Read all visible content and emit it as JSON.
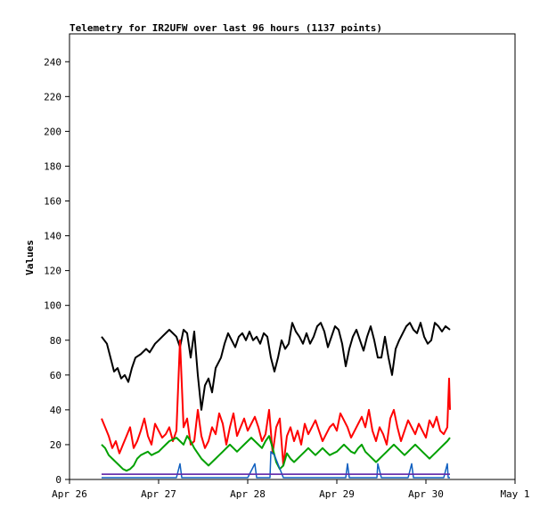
{
  "chart_data": {
    "type": "line",
    "title": "Telemetry for IR2UFW over last 96 hours (1137 points)",
    "xlabel": "",
    "ylabel": "Values",
    "ylim": [
      0,
      256
    ],
    "xlim": [
      "Apr 26",
      "May 1"
    ],
    "x_ticks": [
      "Apr 26",
      "Apr 27",
      "Apr 28",
      "Apr 29",
      "Apr 30",
      "May 1"
    ],
    "y_ticks": [
      0,
      20,
      40,
      60,
      80,
      100,
      120,
      140,
      160,
      180,
      200,
      220,
      240
    ],
    "grid": false,
    "legend": "none",
    "x_unit": "days since Apr 26 00:00",
    "series": [
      {
        "color": "#000000",
        "x": [
          0.36,
          0.42,
          0.46,
          0.5,
          0.54,
          0.58,
          0.62,
          0.66,
          0.7,
          0.74,
          0.8,
          0.86,
          0.9,
          0.96,
          1.0,
          1.04,
          1.08,
          1.12,
          1.16,
          1.2,
          1.24,
          1.28,
          1.32,
          1.36,
          1.4,
          1.44,
          1.48,
          1.52,
          1.56,
          1.6,
          1.64,
          1.7,
          1.74,
          1.78,
          1.82,
          1.86,
          1.9,
          1.94,
          1.98,
          2.02,
          2.06,
          2.1,
          2.14,
          2.18,
          2.22,
          2.26,
          2.3,
          2.34,
          2.38,
          2.42,
          2.46,
          2.5,
          2.54,
          2.58,
          2.62,
          2.66,
          2.7,
          2.74,
          2.78,
          2.82,
          2.86,
          2.9,
          2.94,
          2.98,
          3.02,
          3.06,
          3.1,
          3.14,
          3.18,
          3.22,
          3.26,
          3.3,
          3.34,
          3.38,
          3.42,
          3.46,
          3.5,
          3.54,
          3.58,
          3.62,
          3.66,
          3.7,
          3.74,
          3.78,
          3.82,
          3.86,
          3.9,
          3.94,
          3.98,
          4.02,
          4.06,
          4.1,
          4.14,
          4.18,
          4.22,
          4.27
        ],
        "values": [
          82,
          78,
          70,
          62,
          64,
          58,
          60,
          56,
          64,
          70,
          72,
          75,
          73,
          78,
          80,
          82,
          84,
          86,
          84,
          82,
          76,
          86,
          84,
          70,
          85,
          60,
          40,
          54,
          58,
          50,
          64,
          70,
          78,
          84,
          80,
          76,
          82,
          84,
          80,
          85,
          80,
          82,
          78,
          84,
          82,
          70,
          62,
          70,
          80,
          75,
          78,
          90,
          85,
          82,
          78,
          84,
          78,
          82,
          88,
          90,
          85,
          76,
          82,
          88,
          86,
          78,
          65,
          75,
          82,
          86,
          80,
          74,
          82,
          88,
          80,
          70,
          70,
          82,
          70,
          60,
          75,
          80,
          84,
          88,
          90,
          86,
          84,
          90,
          82,
          78,
          80,
          90,
          88,
          85,
          88,
          86
        ]
      },
      {
        "color": "#ff0000",
        "x": [
          0.36,
          0.4,
          0.44,
          0.48,
          0.52,
          0.56,
          0.6,
          0.64,
          0.68,
          0.72,
          0.76,
          0.8,
          0.84,
          0.88,
          0.92,
          0.96,
          1.0,
          1.04,
          1.08,
          1.12,
          1.16,
          1.2,
          1.24,
          1.28,
          1.32,
          1.36,
          1.4,
          1.44,
          1.48,
          1.52,
          1.56,
          1.6,
          1.64,
          1.68,
          1.72,
          1.76,
          1.8,
          1.84,
          1.88,
          1.92,
          1.96,
          2.0,
          2.04,
          2.08,
          2.12,
          2.16,
          2.2,
          2.24,
          2.28,
          2.32,
          2.36,
          2.4,
          2.44,
          2.48,
          2.52,
          2.56,
          2.6,
          2.64,
          2.68,
          2.72,
          2.76,
          2.8,
          2.84,
          2.88,
          2.92,
          2.96,
          3.0,
          3.04,
          3.08,
          3.12,
          3.16,
          3.2,
          3.24,
          3.28,
          3.32,
          3.36,
          3.4,
          3.44,
          3.48,
          3.52,
          3.56,
          3.6,
          3.64,
          3.68,
          3.72,
          3.76,
          3.8,
          3.84,
          3.88,
          3.92,
          3.96,
          4.0,
          4.04,
          4.08,
          4.12,
          4.16,
          4.2,
          4.24,
          4.26,
          4.27
        ],
        "values": [
          35,
          30,
          25,
          18,
          22,
          15,
          20,
          25,
          30,
          18,
          22,
          28,
          35,
          25,
          20,
          32,
          28,
          24,
          26,
          30,
          22,
          28,
          80,
          30,
          35,
          20,
          22,
          40,
          25,
          18,
          22,
          30,
          26,
          38,
          32,
          20,
          30,
          38,
          25,
          30,
          35,
          28,
          32,
          36,
          30,
          22,
          26,
          40,
          15,
          30,
          35,
          8,
          25,
          30,
          22,
          28,
          20,
          32,
          26,
          30,
          34,
          28,
          22,
          26,
          30,
          32,
          28,
          38,
          34,
          30,
          24,
          28,
          32,
          36,
          30,
          40,
          28,
          22,
          30,
          26,
          20,
          35,
          40,
          30,
          22,
          28,
          34,
          30,
          26,
          32,
          28,
          24,
          34,
          30,
          36,
          28,
          26,
          30,
          58,
          40
        ]
      },
      {
        "color": "#00a000",
        "x": [
          0.36,
          0.4,
          0.44,
          0.48,
          0.52,
          0.56,
          0.6,
          0.64,
          0.68,
          0.72,
          0.76,
          0.8,
          0.84,
          0.88,
          0.92,
          0.96,
          1.0,
          1.04,
          1.08,
          1.12,
          1.16,
          1.2,
          1.24,
          1.28,
          1.32,
          1.36,
          1.4,
          1.44,
          1.48,
          1.52,
          1.56,
          1.6,
          1.64,
          1.68,
          1.72,
          1.76,
          1.8,
          1.84,
          1.88,
          1.92,
          1.96,
          2.0,
          2.04,
          2.08,
          2.12,
          2.16,
          2.2,
          2.24,
          2.28,
          2.32,
          2.36,
          2.4,
          2.44,
          2.48,
          2.52,
          2.56,
          2.6,
          2.64,
          2.68,
          2.72,
          2.76,
          2.8,
          2.84,
          2.88,
          2.92,
          2.96,
          3.0,
          3.04,
          3.08,
          3.12,
          3.16,
          3.2,
          3.24,
          3.28,
          3.32,
          3.36,
          3.4,
          3.44,
          3.48,
          3.52,
          3.56,
          3.6,
          3.64,
          3.68,
          3.72,
          3.76,
          3.8,
          3.84,
          3.88,
          3.92,
          3.96,
          4.0,
          4.04,
          4.08,
          4.12,
          4.16,
          4.2,
          4.24,
          4.27
        ],
        "values": [
          20,
          18,
          14,
          12,
          10,
          8,
          6,
          5,
          6,
          8,
          12,
          14,
          15,
          16,
          14,
          15,
          16,
          18,
          20,
          22,
          23,
          24,
          22,
          20,
          25,
          22,
          18,
          15,
          12,
          10,
          8,
          10,
          12,
          14,
          16,
          18,
          20,
          18,
          16,
          18,
          20,
          22,
          24,
          22,
          20,
          18,
          22,
          25,
          18,
          10,
          6,
          8,
          15,
          12,
          10,
          12,
          14,
          16,
          18,
          16,
          14,
          16,
          18,
          16,
          14,
          15,
          16,
          18,
          20,
          18,
          16,
          15,
          18,
          20,
          16,
          14,
          12,
          10,
          12,
          14,
          16,
          18,
          20,
          18,
          16,
          14,
          16,
          18,
          20,
          18,
          16,
          14,
          12,
          14,
          16,
          18,
          20,
          22,
          24
        ]
      },
      {
        "color": "#1060c0",
        "x": [
          0.36,
          0.5,
          0.7,
          0.9,
          1.1,
          1.2,
          1.24,
          1.26,
          1.28,
          1.5,
          1.7,
          2.0,
          2.08,
          2.1,
          2.12,
          2.25,
          2.26,
          2.3,
          2.4,
          2.5,
          2.6,
          2.8,
          2.9,
          3.0,
          3.1,
          3.12,
          3.14,
          3.3,
          3.45,
          3.46,
          3.5,
          3.8,
          3.84,
          3.86,
          4.0,
          4.1,
          4.2,
          4.24,
          4.25,
          4.27
        ],
        "values": [
          1,
          1,
          1,
          1,
          1,
          1,
          9,
          1,
          1,
          1,
          1,
          1,
          9,
          1,
          1,
          1,
          16,
          14,
          1,
          1,
          1,
          1,
          1,
          1,
          1,
          9,
          1,
          1,
          1,
          9,
          1,
          1,
          9,
          1,
          1,
          1,
          1,
          9,
          1,
          1
        ]
      },
      {
        "color": "#1010ff",
        "x": [
          0.36,
          4.27
        ],
        "values": [
          3,
          3
        ]
      },
      {
        "color": "#7030a0",
        "x": [
          0.36,
          4.27
        ],
        "values": [
          3,
          3
        ]
      }
    ]
  }
}
